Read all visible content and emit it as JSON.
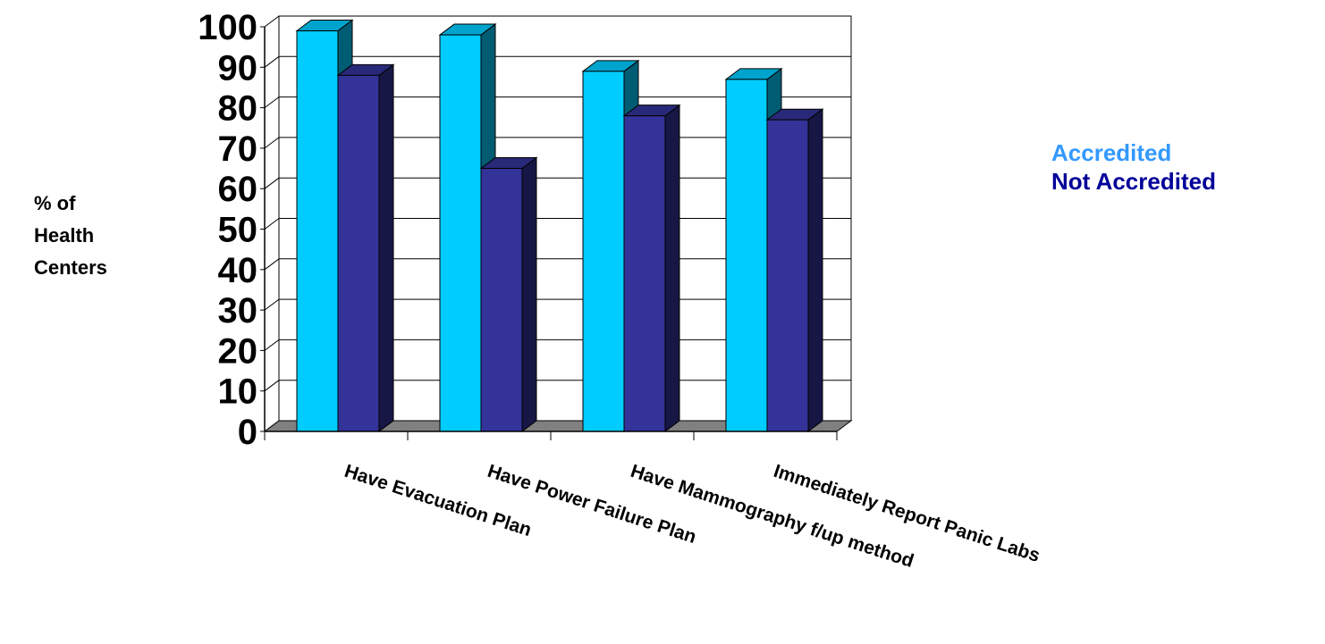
{
  "chart_data": {
    "type": "bar",
    "title": "",
    "xlabel": "",
    "ylabel": "% of Health Centers",
    "ylim": [
      0,
      100
    ],
    "yticks": [
      0,
      10,
      20,
      30,
      40,
      50,
      60,
      70,
      80,
      90,
      100
    ],
    "categories": [
      "Have Evacuation Plan",
      "Have Power Failure Plan",
      "Have Mammography f/up method",
      "Immediately Report Panic Labs"
    ],
    "series": [
      {
        "name": "Accredited",
        "color": "#00ccff",
        "values": [
          99,
          98,
          89,
          87
        ]
      },
      {
        "name": "Not Accredited",
        "color": "#333399",
        "values": [
          88,
          65,
          78,
          77
        ]
      }
    ],
    "grid": true,
    "legend": "right"
  },
  "ylabel_lines": [
    "% of",
    "Health",
    "Centers"
  ],
  "legend_colors": {
    "Accredited": "#3399ff",
    "Not Accredited": "#000099"
  }
}
